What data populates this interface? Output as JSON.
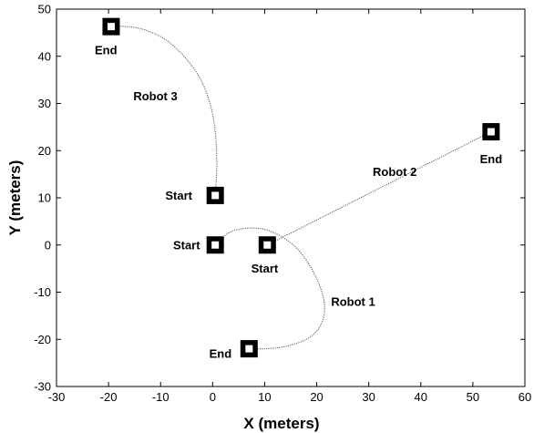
{
  "chart_data": {
    "type": "line",
    "xlabel": "X (meters)",
    "ylabel": "Y (meters)",
    "xlim": [
      -30,
      60
    ],
    "ylim": [
      -30,
      50
    ],
    "xticks": [
      -30,
      -20,
      -10,
      0,
      10,
      20,
      30,
      40,
      50,
      60
    ],
    "yticks": [
      -30,
      -20,
      -10,
      0,
      10,
      20,
      30,
      40,
      50
    ],
    "grid": false,
    "series": [
      {
        "id": "robot-1",
        "x": [
          0.5,
          3.5,
          8,
          12,
          16,
          19,
          21,
          21.5,
          20.5,
          18,
          14,
          10,
          7
        ],
        "y": [
          0,
          2.8,
          3.6,
          2.5,
          -0.5,
          -5,
          -10,
          -14,
          -17.5,
          -20,
          -21.5,
          -22,
          -22
        ]
      },
      {
        "id": "robot-2",
        "x": [
          10.5,
          53.5
        ],
        "y": [
          0,
          24
        ]
      },
      {
        "id": "robot-3",
        "x": [
          0.5,
          0.8,
          0.5,
          -0.5,
          -2.5,
          -5.5,
          -9,
          -13,
          -16.5,
          -19.5
        ],
        "y": [
          10.5,
          17,
          24,
          30,
          35.5,
          40,
          43.5,
          45.6,
          46.3,
          46.3
        ]
      }
    ],
    "markers": [
      {
        "id": "robot-1-start",
        "x": 0.5,
        "y": 0
      },
      {
        "id": "robot-1-end",
        "x": 7,
        "y": -22
      },
      {
        "id": "robot-2-start",
        "x": 10.5,
        "y": 0
      },
      {
        "id": "robot-2-end",
        "x": 53.5,
        "y": 24
      },
      {
        "id": "robot-3-start",
        "x": 0.5,
        "y": 10.5
      },
      {
        "id": "robot-3-end",
        "x": -19.5,
        "y": 46.3
      }
    ],
    "annotations": [
      {
        "id": "robot-3-label",
        "text": "Robot 3",
        "x": -11,
        "y": 31.5
      },
      {
        "id": "robot-2-label",
        "text": "Robot 2",
        "x": 35,
        "y": 15.5
      },
      {
        "id": "robot-1-label",
        "text": "Robot 1",
        "x": 27,
        "y": -12
      },
      {
        "id": "robot-3-end-label",
        "text": "End",
        "x": -20.5,
        "y": 41.3
      },
      {
        "id": "robot-2-end-label",
        "text": "End",
        "x": 53.5,
        "y": 18.2
      },
      {
        "id": "robot-3-start-label",
        "text": "Start",
        "x": -6.5,
        "y": 10.5
      },
      {
        "id": "robot-1-start-label",
        "text": "Start",
        "x": -5,
        "y": 0
      },
      {
        "id": "robot-2-start-label",
        "text": "Start",
        "x": 10,
        "y": -5
      },
      {
        "id": "robot-1-end-label",
        "text": "End",
        "x": 1.5,
        "y": -23
      }
    ]
  }
}
